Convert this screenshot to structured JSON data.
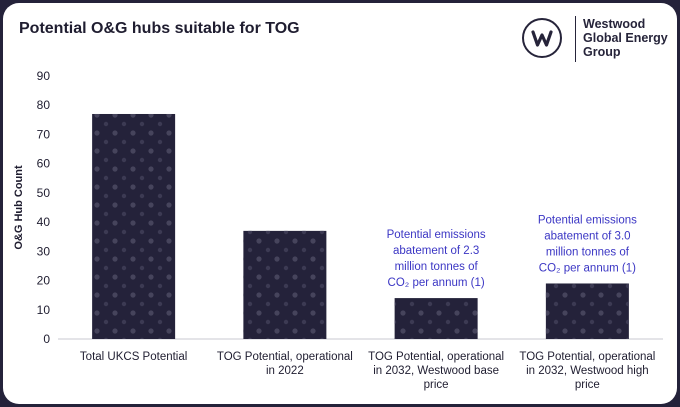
{
  "header": {
    "title": "Potential O&G hubs suitable for TOG",
    "logo": {
      "icon": "westwood-w-logo",
      "lines": [
        "Westwood",
        "Global Energy",
        "Group"
      ]
    }
  },
  "chart_data": {
    "type": "bar",
    "title": "Potential O&G hubs suitable for TOG",
    "ylabel": "O&G Hub Count",
    "xlabel": "",
    "ylim": [
      0,
      90
    ],
    "yticks": [
      0,
      10,
      20,
      30,
      40,
      50,
      60,
      70,
      80,
      90
    ],
    "grid": false,
    "categories": [
      [
        "Total UKCS Potential"
      ],
      [
        "TOG Potential, operational",
        "in 2022"
      ],
      [
        "TOG Potential, operational",
        "in 2032, Westwood base",
        "price"
      ],
      [
        "TOG Potential, operational",
        "in 2032, Westwood high",
        "price"
      ]
    ],
    "values": [
      77,
      37,
      14,
      19
    ],
    "bar_color": "#24223a",
    "annotations": [
      {
        "category_index": 2,
        "lines": [
          "Potential emissions",
          "abatement of 2.3",
          "million tonnes of",
          "CO₂ per annum (1)"
        ]
      },
      {
        "category_index": 3,
        "lines": [
          "Potential emissions",
          "abatement of 3.0",
          "million tonnes of",
          "CO₂ per annum (1)"
        ]
      }
    ],
    "annotation_color": "#3b36c4"
  }
}
